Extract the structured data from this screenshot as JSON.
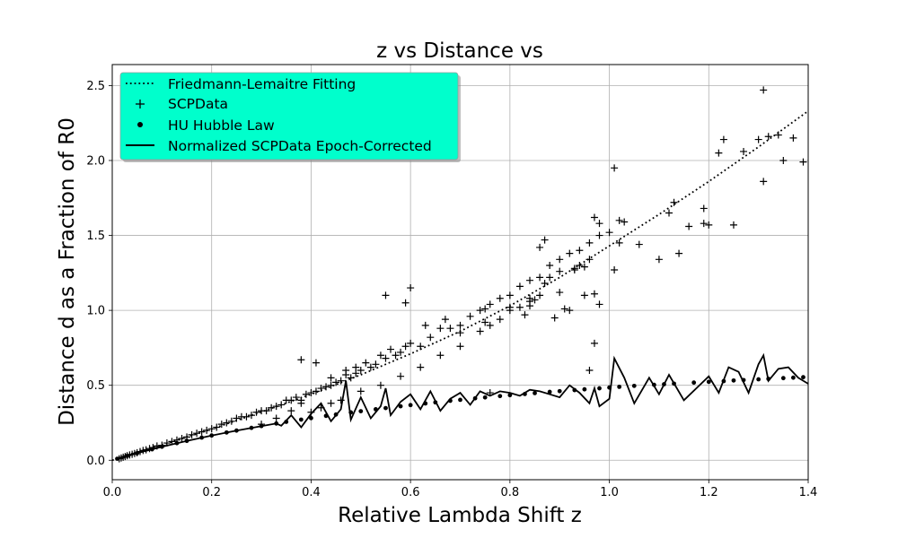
{
  "chart_data": {
    "type": "scatter",
    "title": "z vs Distance vs",
    "xlabel": "Relative Lambda Shift z",
    "ylabel": "Distance d as a Fraction of R0",
    "xlim": [
      0.0,
      1.4
    ],
    "ylim": [
      -0.13,
      2.64
    ],
    "x_ticks": [
      "0.0",
      "0.2",
      "0.4",
      "0.6",
      "0.8",
      "1.0",
      "1.2",
      "1.4"
    ],
    "y_ticks": [
      "0.0",
      "0.5",
      "1.0",
      "1.5",
      "2.0",
      "2.5"
    ],
    "grid": true,
    "legend_placement": "upper left",
    "legend_facecolor": "#00ffcc",
    "series": [
      {
        "name": "Friedmann-Lemaitre Fitting",
        "style": "dotted-line",
        "color": "#000000",
        "x": [
          0.0,
          0.1,
          0.2,
          0.3,
          0.4,
          0.5,
          0.6,
          0.7,
          0.8,
          0.9,
          1.0,
          1.1,
          1.2,
          1.3,
          1.4
        ],
        "y": [
          0.0,
          0.102,
          0.208,
          0.322,
          0.44,
          0.57,
          0.71,
          0.86,
          1.03,
          1.22,
          1.43,
          1.64,
          1.86,
          2.09,
          2.33
        ]
      },
      {
        "name": "SCPData",
        "style": "plus-marker",
        "color": "#000000",
        "x": [
          0.014,
          0.018,
          0.022,
          0.026,
          0.03,
          0.035,
          0.04,
          0.045,
          0.05,
          0.056,
          0.062,
          0.068,
          0.075,
          0.082,
          0.09,
          0.1,
          0.11,
          0.12,
          0.13,
          0.14,
          0.15,
          0.16,
          0.17,
          0.18,
          0.19,
          0.2,
          0.21,
          0.22,
          0.23,
          0.24,
          0.25,
          0.26,
          0.27,
          0.28,
          0.29,
          0.3,
          0.31,
          0.32,
          0.33,
          0.34,
          0.35,
          0.36,
          0.37,
          0.38,
          0.39,
          0.4,
          0.41,
          0.42,
          0.43,
          0.44,
          0.45,
          0.46,
          0.47,
          0.48,
          0.49,
          0.5,
          0.51,
          0.52,
          0.53,
          0.54,
          0.55,
          0.56,
          0.57,
          0.58,
          0.59,
          0.6,
          0.62,
          0.64,
          0.66,
          0.68,
          0.7,
          0.72,
          0.74,
          0.76,
          0.78,
          0.8,
          0.82,
          0.84,
          0.86,
          0.88,
          0.9,
          0.92,
          0.94,
          0.96,
          0.98,
          1.0,
          0.3,
          0.33,
          0.36,
          0.38,
          0.4,
          0.42,
          0.44,
          0.46,
          0.5,
          0.54,
          0.58,
          0.62,
          0.66,
          0.7,
          0.74,
          0.76,
          0.78,
          0.8,
          0.82,
          0.84,
          0.86,
          0.87,
          0.88,
          0.9,
          0.93,
          0.94,
          0.95,
          0.96,
          0.97,
          0.98,
          0.38,
          0.41,
          0.44,
          0.47,
          0.49,
          0.55,
          0.59,
          0.6,
          0.63,
          0.67,
          0.7,
          0.75,
          0.8,
          0.83,
          0.84,
          0.85,
          0.86,
          0.87,
          0.9,
          0.91,
          0.92,
          0.93,
          0.95,
          0.97,
          0.98,
          1.01,
          1.01,
          1.02,
          1.02,
          1.03,
          1.06,
          1.1,
          1.12,
          1.13,
          1.14,
          1.16,
          1.19,
          1.19,
          1.2,
          1.22,
          1.23,
          1.25,
          1.27,
          1.3,
          1.31,
          1.31,
          1.32,
          1.34,
          1.35,
          1.37,
          1.39,
          0.96,
          0.75,
          0.97,
          0.76,
          0.89,
          0.84
        ],
        "y": [
          0.01,
          0.015,
          0.02,
          0.025,
          0.03,
          0.035,
          0.04,
          0.045,
          0.05,
          0.058,
          0.065,
          0.07,
          0.078,
          0.085,
          0.095,
          0.1,
          0.115,
          0.125,
          0.135,
          0.145,
          0.155,
          0.17,
          0.18,
          0.19,
          0.2,
          0.21,
          0.22,
          0.24,
          0.25,
          0.26,
          0.28,
          0.29,
          0.29,
          0.3,
          0.32,
          0.33,
          0.33,
          0.35,
          0.36,
          0.37,
          0.4,
          0.4,
          0.42,
          0.4,
          0.44,
          0.45,
          0.46,
          0.48,
          0.49,
          0.5,
          0.52,
          0.53,
          0.57,
          0.55,
          0.58,
          0.6,
          0.65,
          0.62,
          0.64,
          0.7,
          0.68,
          0.74,
          0.7,
          0.72,
          0.76,
          0.78,
          0.76,
          0.82,
          0.88,
          0.88,
          0.9,
          0.96,
          1.0,
          1.04,
          1.08,
          1.1,
          1.16,
          1.2,
          1.22,
          1.3,
          1.34,
          1.38,
          1.4,
          1.45,
          1.5,
          1.52,
          0.24,
          0.28,
          0.33,
          0.38,
          0.32,
          0.35,
          0.38,
          0.4,
          0.46,
          0.5,
          0.56,
          0.62,
          0.7,
          0.76,
          0.86,
          0.9,
          0.94,
          1.0,
          1.02,
          1.06,
          1.1,
          1.18,
          1.22,
          1.26,
          1.28,
          1.3,
          1.29,
          1.34,
          1.62,
          1.58,
          0.67,
          0.65,
          0.55,
          0.6,
          0.62,
          1.1,
          1.05,
          1.15,
          0.9,
          0.94,
          0.85,
          1.01,
          1.02,
          0.97,
          1.03,
          1.07,
          1.42,
          1.47,
          1.12,
          1.01,
          1.0,
          1.27,
          1.1,
          1.11,
          1.04,
          1.95,
          1.27,
          1.6,
          1.45,
          1.59,
          1.44,
          1.34,
          1.65,
          1.72,
          1.38,
          1.56,
          1.68,
          1.58,
          1.57,
          2.05,
          2.14,
          1.57,
          2.06,
          2.14,
          1.86,
          2.47,
          2.16,
          2.17,
          2.0,
          2.15,
          1.99,
          0.6,
          0.92,
          0.78,
          0.45,
          0.95,
          1.08
        ]
      },
      {
        "name": "HU Hubble Law",
        "style": "dot-marker",
        "color": "#000000",
        "x": [
          0.01,
          0.03,
          0.05,
          0.08,
          0.1,
          0.13,
          0.15,
          0.18,
          0.2,
          0.23,
          0.25,
          0.28,
          0.3,
          0.33,
          0.35,
          0.38,
          0.4,
          0.43,
          0.45,
          0.48,
          0.5,
          0.53,
          0.55,
          0.58,
          0.6,
          0.63,
          0.65,
          0.68,
          0.7,
          0.73,
          0.75,
          0.78,
          0.8,
          0.83,
          0.85,
          0.88,
          0.9,
          0.93,
          0.95,
          0.98,
          1.0,
          1.02,
          1.05,
          1.09,
          1.11,
          1.13,
          1.17,
          1.2,
          1.23,
          1.25,
          1.27,
          1.3,
          1.32,
          1.35,
          1.37,
          1.39
        ],
        "y": [
          0.01,
          0.029,
          0.047,
          0.073,
          0.09,
          0.114,
          0.129,
          0.151,
          0.165,
          0.185,
          0.198,
          0.216,
          0.228,
          0.245,
          0.256,
          0.271,
          0.281,
          0.296,
          0.305,
          0.319,
          0.327,
          0.34,
          0.348,
          0.36,
          0.368,
          0.379,
          0.386,
          0.397,
          0.403,
          0.413,
          0.419,
          0.428,
          0.434,
          0.442,
          0.448,
          0.456,
          0.461,
          0.468,
          0.473,
          0.48,
          0.485,
          0.49,
          0.496,
          0.503,
          0.507,
          0.511,
          0.518,
          0.523,
          0.528,
          0.532,
          0.535,
          0.54,
          0.543,
          0.548,
          0.551,
          0.554
        ]
      },
      {
        "name": "Normalized SCPData Epoch-Corrected",
        "style": "solid-line",
        "color": "#000000",
        "x": [
          0.01,
          0.05,
          0.1,
          0.15,
          0.2,
          0.25,
          0.3,
          0.33,
          0.34,
          0.36,
          0.38,
          0.4,
          0.42,
          0.44,
          0.46,
          0.47,
          0.48,
          0.5,
          0.52,
          0.54,
          0.55,
          0.56,
          0.58,
          0.6,
          0.62,
          0.64,
          0.66,
          0.68,
          0.7,
          0.72,
          0.74,
          0.76,
          0.78,
          0.8,
          0.82,
          0.84,
          0.86,
          0.88,
          0.9,
          0.92,
          0.94,
          0.96,
          0.97,
          0.98,
          1.0,
          1.01,
          1.03,
          1.05,
          1.08,
          1.1,
          1.12,
          1.15,
          1.2,
          1.22,
          1.24,
          1.26,
          1.28,
          1.3,
          1.31,
          1.32,
          1.34,
          1.36,
          1.38,
          1.4
        ],
        "y": [
          0.01,
          0.047,
          0.09,
          0.129,
          0.165,
          0.198,
          0.228,
          0.245,
          0.23,
          0.3,
          0.22,
          0.31,
          0.38,
          0.26,
          0.34,
          0.53,
          0.27,
          0.42,
          0.28,
          0.36,
          0.48,
          0.3,
          0.39,
          0.44,
          0.34,
          0.46,
          0.33,
          0.41,
          0.45,
          0.37,
          0.46,
          0.43,
          0.46,
          0.45,
          0.43,
          0.47,
          0.46,
          0.44,
          0.42,
          0.5,
          0.45,
          0.38,
          0.48,
          0.36,
          0.41,
          0.68,
          0.55,
          0.38,
          0.55,
          0.44,
          0.57,
          0.4,
          0.56,
          0.45,
          0.62,
          0.59,
          0.45,
          0.64,
          0.7,
          0.53,
          0.61,
          0.62,
          0.55,
          0.51
        ]
      }
    ]
  }
}
